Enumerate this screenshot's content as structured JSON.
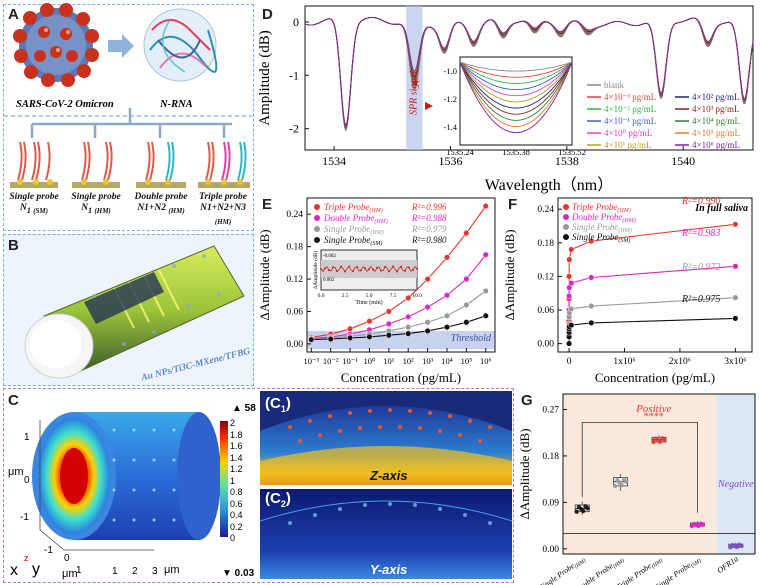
{
  "figure": {
    "panel_labels": {
      "a": "A",
      "b": "B",
      "c": "C",
      "c1": "(C",
      "c1s": "1",
      "c2": "(C",
      "c2s": "2",
      "d": "D",
      "e": "E",
      "f": "F",
      "g": "G"
    }
  },
  "panel_a": {
    "virus_label": "SARS-CoV-2 Omicron",
    "rna_label": "N-RNA",
    "probes": [
      {
        "line1": "Single probe",
        "line2": "N",
        "sub": "1",
        "tag": "(SM)"
      },
      {
        "line1": "Single probe",
        "line2": "N",
        "sub": "1",
        "tag": "(HM)"
      },
      {
        "line1": "Double probe",
        "line2": "N1+N2",
        "sub": "",
        "tag": "(HM)"
      },
      {
        "line1": "Triple probe",
        "line2": "N1+N2+N3",
        "sub": "",
        "tag": "(HM)"
      }
    ]
  },
  "panel_b": {
    "label": "Au NPs/Ti3C-MXene/TFBG"
  },
  "panel_c": {
    "colorbar_max": "▲ 58",
    "colorbar_min": "▼ 0.03",
    "colorbar_ticks": [
      "2",
      "1.8",
      "1.6",
      "1.4",
      "1.2",
      "1",
      "0.8",
      "0.6",
      "0.4",
      "0.2",
      "0"
    ],
    "y_ticks": [
      "1",
      "0",
      "-1"
    ],
    "x_ticks": [
      "-1",
      "0",
      "1"
    ],
    "x2_ticks": [
      "1",
      "2",
      "3"
    ],
    "y_unit": "μm",
    "x_unit": "μm",
    "x2_unit": "μm",
    "axes": {
      "x": "x",
      "y": "y",
      "z": "z"
    },
    "c1_axis": "Z-axis",
    "c2_axis": "Y-axis"
  },
  "panel_d": {
    "ylabel": "Amplitude (dB)",
    "xlabel": "Wavelength（nm）",
    "yticks": [
      "0",
      "-1",
      "-2"
    ],
    "xticks": [
      "1534",
      "1536",
      "1538",
      "1540"
    ],
    "spr_label": "SPR signal",
    "inset_yticks": [
      "-1.0",
      "-1.2",
      "-1.4"
    ],
    "inset_xticks": [
      "1535.24",
      "1535.38",
      "1535.52"
    ],
    "legend": [
      {
        "text": "blank",
        "color": "#888888"
      },
      {
        "text": "4×10⁻³ pg/mL",
        "color": "#e8403a"
      },
      {
        "text": "4×10⁻² pg/mL",
        "color": "#37b34a"
      },
      {
        "text": "4×10⁻¹ pg/mL",
        "color": "#3a5fd0"
      },
      {
        "text": "4×10⁰ pg/mL",
        "color": "#e040c8"
      },
      {
        "text": "4×10¹ pg/mL",
        "color": "#b0a020"
      },
      {
        "text": "4×10² pg/mL",
        "color": "#1a237e"
      },
      {
        "text": "4×10³ pg/mL",
        "color": "#8b1a1a"
      },
      {
        "text": "4×10⁴ pg/mL",
        "color": "#2e7d32"
      },
      {
        "text": "4×10⁵ pg/mL",
        "color": "#e07a20"
      },
      {
        "text": "4×10⁶ pg/mL",
        "color": "#7b1fa2"
      }
    ]
  },
  "panel_e": {
    "ylabel": "ΔAmplitude (dB)",
    "xlabel": "Concentration (pg/mL)",
    "threshold": "Threshold",
    "yticks": [
      "0.00",
      "0.06",
      "0.12",
      "0.18",
      "0.24"
    ],
    "xticks": [
      "10⁻³",
      "10⁻²",
      "10⁻¹",
      "10⁰",
      "10¹",
      "10²",
      "10³",
      "10⁴",
      "10⁵",
      "10⁶"
    ],
    "inset_ylabel": "ΔAmplitude (dB)",
    "inset_xlabel": "Time (min)",
    "inset_xticks": [
      "0.0",
      "2.5",
      "5.0",
      "7.5",
      "10.0"
    ],
    "inset_yticks": [
      "-0.002",
      "0.002"
    ],
    "legend": [
      {
        "name": "Triple Probe",
        "sub": "(HM)",
        "r2": "R²=0.996",
        "color": "#e8352d"
      },
      {
        "name": "Double Probe",
        "sub": "(HM)",
        "r2": "R²=0.988",
        "color": "#d926c8"
      },
      {
        "name": "Single Probe",
        "sub": "(HM)",
        "r2": "R²=0.979",
        "color": "#999999"
      },
      {
        "name": "Single Probe",
        "sub": "(SM)",
        "r2": "R²=0.980",
        "color": "#111111"
      }
    ]
  },
  "panel_f": {
    "ylabel": "ΔAmplitude (dB)",
    "xlabel": "Concentration (pg/mL)",
    "condition": "In full saliva",
    "yticks": [
      "0.00",
      "0.06",
      "0.12",
      "0.18",
      "0.24"
    ],
    "xticks": [
      "0",
      "1x10⁶",
      "2x10⁶",
      "3x10⁶"
    ],
    "legend": [
      {
        "name": "Triple Probe",
        "sub": "(HM)",
        "r2": "R²=0.990",
        "color": "#e8352d"
      },
      {
        "name": "Double Probe",
        "sub": "(HM)",
        "r2": "R²=0.983",
        "color": "#d926c8"
      },
      {
        "name": "Single Probe",
        "sub": "(HM)",
        "r2": "R²=0.972",
        "color": "#999999"
      },
      {
        "name": "Single Probe",
        "sub": "(SM)",
        "r2": "R²=0.975",
        "color": "#111111"
      }
    ]
  },
  "panel_g": {
    "ylabel": "ΔAmplitude (dB)",
    "yticks": [
      "0.00",
      "0.09",
      "0.18",
      "0.27"
    ],
    "positive": "Positive",
    "negative": "Negative",
    "significance": "****",
    "categories": [
      {
        "name": "Single Probe",
        "sub": "(HM)"
      },
      {
        "name": "Double Probe",
        "sub": "(HM)"
      },
      {
        "name": "Triple Probe",
        "sub": "(HM)"
      },
      {
        "name": "Single Probe",
        "sub": "(SM)"
      },
      {
        "name": "OFR1a",
        "sub": ""
      }
    ]
  },
  "chart_data": [
    {
      "id": "D",
      "type": "line",
      "title": "",
      "xlabel": "Wavelength（nm）",
      "ylabel": "Amplitude (dB)",
      "xlim": [
        1533.5,
        1541.2
      ],
      "ylim": [
        -2.4,
        0.3
      ],
      "resonances": [
        {
          "center": 1534.2,
          "depth": 2.05
        },
        {
          "center": 1535.38,
          "depth": 1.3
        },
        {
          "center": 1535.9,
          "depth": 0.55
        },
        {
          "center": 1536.4,
          "depth": 0.4
        },
        {
          "center": 1536.9,
          "depth": 0.35
        },
        {
          "center": 1537.45,
          "depth": 0.3
        },
        {
          "center": 1537.9,
          "depth": 0.25
        },
        {
          "center": 1538.35,
          "depth": 0.2
        },
        {
          "center": 1539.62,
          "depth": 1.5
        },
        {
          "center": 1540.42,
          "depth": 0.5
        },
        {
          "center": 1541.05,
          "depth": 1.55
        }
      ]
    },
    {
      "id": "E",
      "type": "scatter",
      "xscale": "log",
      "x": [
        0.001,
        0.01,
        0.1,
        1,
        10,
        100,
        1000,
        10000,
        100000,
        1000000
      ],
      "xlim": [
        0.0006,
        3000000
      ],
      "ylim": [
        -0.015,
        0.27
      ],
      "series": [
        {
          "name": "Triple Probe (HM)",
          "color": "#e8352d",
          "values": [
            0.012,
            0.018,
            0.028,
            0.042,
            0.06,
            0.085,
            0.12,
            0.16,
            0.205,
            0.255
          ]
        },
        {
          "name": "Double Probe (HM)",
          "color": "#d926c8",
          "values": [
            0.01,
            0.013,
            0.018,
            0.026,
            0.037,
            0.05,
            0.068,
            0.09,
            0.12,
            0.165
          ]
        },
        {
          "name": "Single Probe (HM)",
          "color": "#999999",
          "values": [
            0.009,
            0.011,
            0.014,
            0.018,
            0.024,
            0.031,
            0.04,
            0.052,
            0.072,
            0.098
          ]
        },
        {
          "name": "Single Probe (SM)",
          "color": "#111111",
          "values": [
            0.008,
            0.009,
            0.011,
            0.013,
            0.016,
            0.019,
            0.024,
            0.031,
            0.04,
            0.052
          ]
        }
      ],
      "threshold": 0.012
    },
    {
      "id": "F",
      "type": "scatter",
      "x": [
        0,
        4,
        40,
        400,
        4000,
        40000,
        400000,
        3000000
      ],
      "xlim": [
        -200000,
        3300000
      ],
      "ylim": [
        -0.015,
        0.26
      ],
      "series": [
        {
          "name": "Triple Probe (HM)",
          "color": "#e8352d",
          "values": [
            0.0,
            0.04,
            0.08,
            0.12,
            0.15,
            0.168,
            0.183,
            0.213
          ]
        },
        {
          "name": "Double Probe (HM)",
          "color": "#d926c8",
          "values": [
            0.0,
            0.03,
            0.06,
            0.085,
            0.1,
            0.108,
            0.118,
            0.138
          ]
        },
        {
          "name": "Single Probe (HM)",
          "color": "#999999",
          "values": [
            0.0,
            0.02,
            0.035,
            0.048,
            0.055,
            0.062,
            0.067,
            0.082
          ]
        },
        {
          "name": "Single Probe (SM)",
          "color": "#111111",
          "values": [
            0.0,
            0.012,
            0.02,
            0.026,
            0.03,
            0.033,
            0.037,
            0.045
          ]
        }
      ]
    },
    {
      "id": "G",
      "type": "box",
      "ylim": [
        -0.01,
        0.3
      ],
      "groups": [
        {
          "name": "Single Probe (HM)",
          "color": "#111111",
          "median": 0.078,
          "q1": 0.072,
          "q3": 0.085,
          "min": 0.066,
          "max": 0.092
        },
        {
          "name": "Double Probe (HM)",
          "color": "#999999",
          "median": 0.13,
          "q1": 0.122,
          "q3": 0.138,
          "min": 0.112,
          "max": 0.145
        },
        {
          "name": "Triple Probe (HM)",
          "color": "#e8352d",
          "median": 0.212,
          "q1": 0.207,
          "q3": 0.216,
          "min": 0.203,
          "max": 0.22
        },
        {
          "name": "Single Probe (SM)",
          "color": "#d926c8",
          "median": 0.047,
          "q1": 0.044,
          "q3": 0.05,
          "min": 0.041,
          "max": 0.054
        },
        {
          "name": "OFR1a",
          "color": "#7b4fd0",
          "median": 0.006,
          "q1": 0.003,
          "q3": 0.009,
          "min": 0.0,
          "max": 0.012
        }
      ],
      "cutoff": 0.03
    }
  ]
}
